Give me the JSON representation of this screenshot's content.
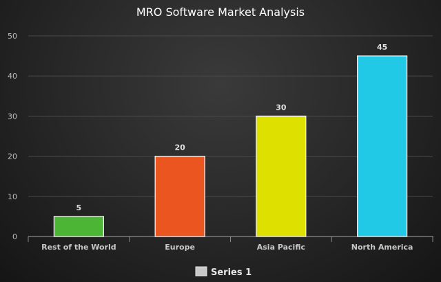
{
  "chart_data": {
    "type": "bar",
    "title": "MRO Software Market Analysis",
    "categories": [
      "Rest of the World",
      "Europe",
      "Asia Pacific",
      "North America"
    ],
    "series": [
      {
        "name": "Series 1",
        "values": [
          5,
          20,
          30,
          45
        ]
      }
    ],
    "bar_colors": [
      "#4db535",
      "#eb5520",
      "#dee000",
      "#22c9e6"
    ],
    "ylim": [
      0,
      50
    ],
    "yticks": [
      0,
      10,
      20,
      30,
      40,
      50
    ],
    "grid": true,
    "legend_position": "bottom",
    "legend_swatch_color": "#c8c8c8"
  }
}
